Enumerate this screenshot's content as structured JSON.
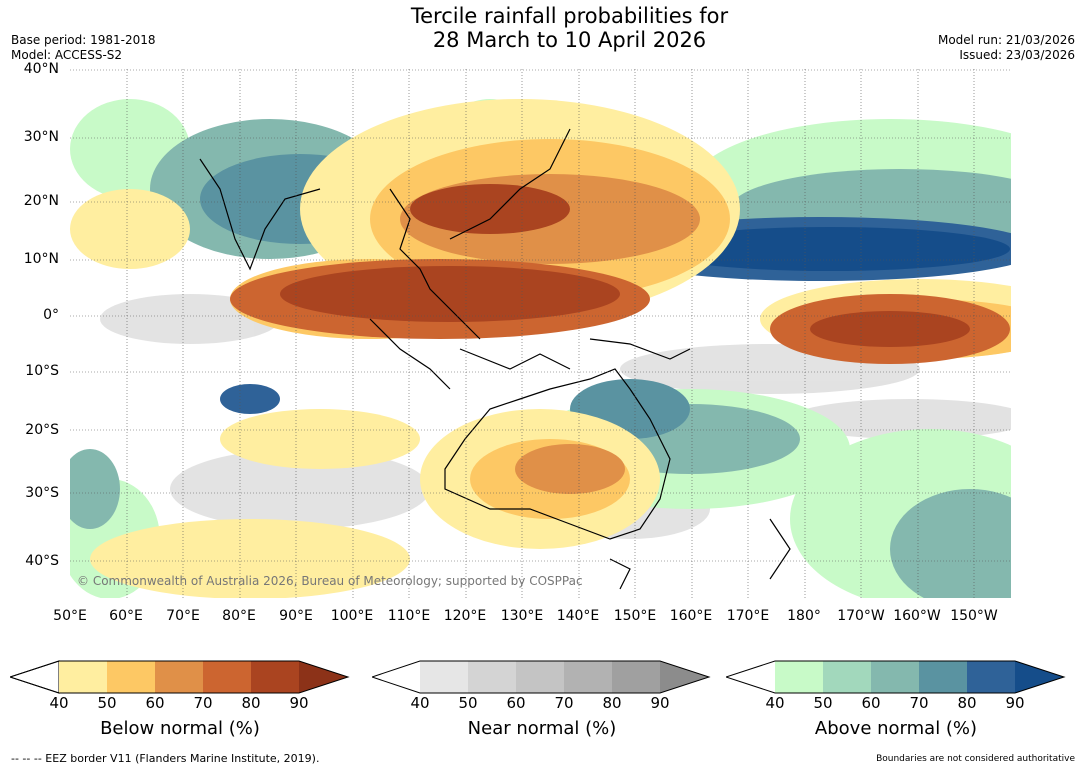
{
  "title": {
    "line1": "Tercile rainfall probabilities for",
    "line2": "28 March to 10 April 2026"
  },
  "meta": {
    "base_period": "Base period: 1981-2018",
    "model": "Model: ACCESS-S2",
    "model_run": "Model run: 21/03/2026",
    "issued": "Issued: 23/03/2026"
  },
  "map": {
    "lat_labels": [
      "40°N",
      "30°N",
      "20°N",
      "10°N",
      "0°",
      "10°S",
      "20°S",
      "30°S",
      "40°S"
    ],
    "lon_labels": [
      "50°E",
      "60°E",
      "70°E",
      "80°E",
      "90°E",
      "100°E",
      "110°E",
      "120°E",
      "130°E",
      "140°E",
      "150°E",
      "160°E",
      "170°E",
      "180°",
      "170°W",
      "160°W",
      "150°W"
    ],
    "copyright": "© Commonwealth of Australia 2026, Bureau of Meteorology; supported by COSPPac"
  },
  "colorbars": [
    {
      "name": "below",
      "title": "Below normal (%)",
      "ticks": [
        "40",
        "50",
        "60",
        "70",
        "80",
        "90"
      ],
      "colors": [
        "#ffeea0",
        "#fdc864",
        "#e09048",
        "#cc6530",
        "#aa4420"
      ],
      "extend_color": "#8c3218"
    },
    {
      "name": "near",
      "title": "Near normal (%)",
      "ticks": [
        "40",
        "50",
        "60",
        "70",
        "80",
        "90"
      ],
      "colors": [
        "#e6e6e6",
        "#d4d4d4",
        "#c4c4c4",
        "#b2b2b2",
        "#a0a0a0"
      ],
      "extend_color": "#8c8c8c"
    },
    {
      "name": "above",
      "title": "Above normal (%)",
      "ticks": [
        "40",
        "50",
        "60",
        "70",
        "80",
        "90"
      ],
      "colors": [
        "#c8fac8",
        "#a2d8bc",
        "#84b8ae",
        "#5a93a1",
        "#2f6298"
      ],
      "extend_color": "#154d8a"
    }
  ],
  "footer": {
    "eez": "--  --  -- EEZ border V11 (Flanders Marine Institute, 2019).",
    "disclaimer": "Boundaries are not considered authoritative"
  },
  "colors": {
    "dry_strong": "#aa4420",
    "wet_strong": "#154d8a"
  }
}
